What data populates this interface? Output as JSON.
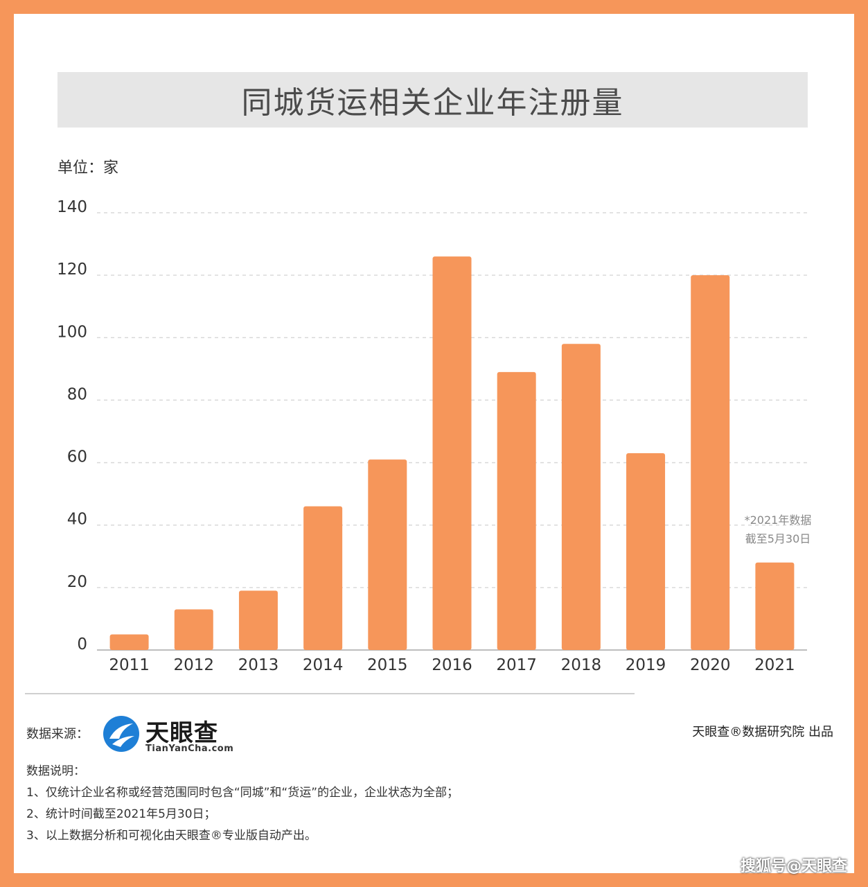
{
  "title": "同城货运相关企业年注册量",
  "unit_label": "单位：家",
  "note_lines": [
    "*2021年数据",
    "截至5月30日"
  ],
  "footer": {
    "source_label": "数据来源：",
    "logo_text": "天眼查",
    "logo_sub": "TianYanCha.com",
    "producer": "天眼查®数据研究院 出品",
    "notes_title": "数据说明：",
    "notes": [
      "1、仅统计企业名称或经营范围同时包含“同城”和“货运”的企业，企业状态为全部；",
      "2、统计时间截至2021年5月30日；",
      "3、以上数据分析和可视化由天眼查®专业版自动产出。"
    ],
    "sohu_watermark": "搜狐号@天眼查"
  },
  "colors": {
    "bar": "#f6965a",
    "frame": "#f6965a",
    "title_bg": "#e6e6e6",
    "logo_blue": "#1e7fd6"
  },
  "chart_data": {
    "type": "bar",
    "title": "同城货运相关企业年注册量",
    "ylabel": "单位：家",
    "categories": [
      "2011",
      "2012",
      "2013",
      "2014",
      "2015",
      "2016",
      "2017",
      "2018",
      "2019",
      "2020",
      "2021"
    ],
    "values": [
      5,
      13,
      19,
      46,
      61,
      126,
      89,
      98,
      63,
      120,
      28
    ],
    "ylim": [
      0,
      140
    ],
    "yticks": [
      0,
      20,
      40,
      60,
      80,
      100,
      120,
      140
    ],
    "grid": true,
    "legend": "none"
  }
}
